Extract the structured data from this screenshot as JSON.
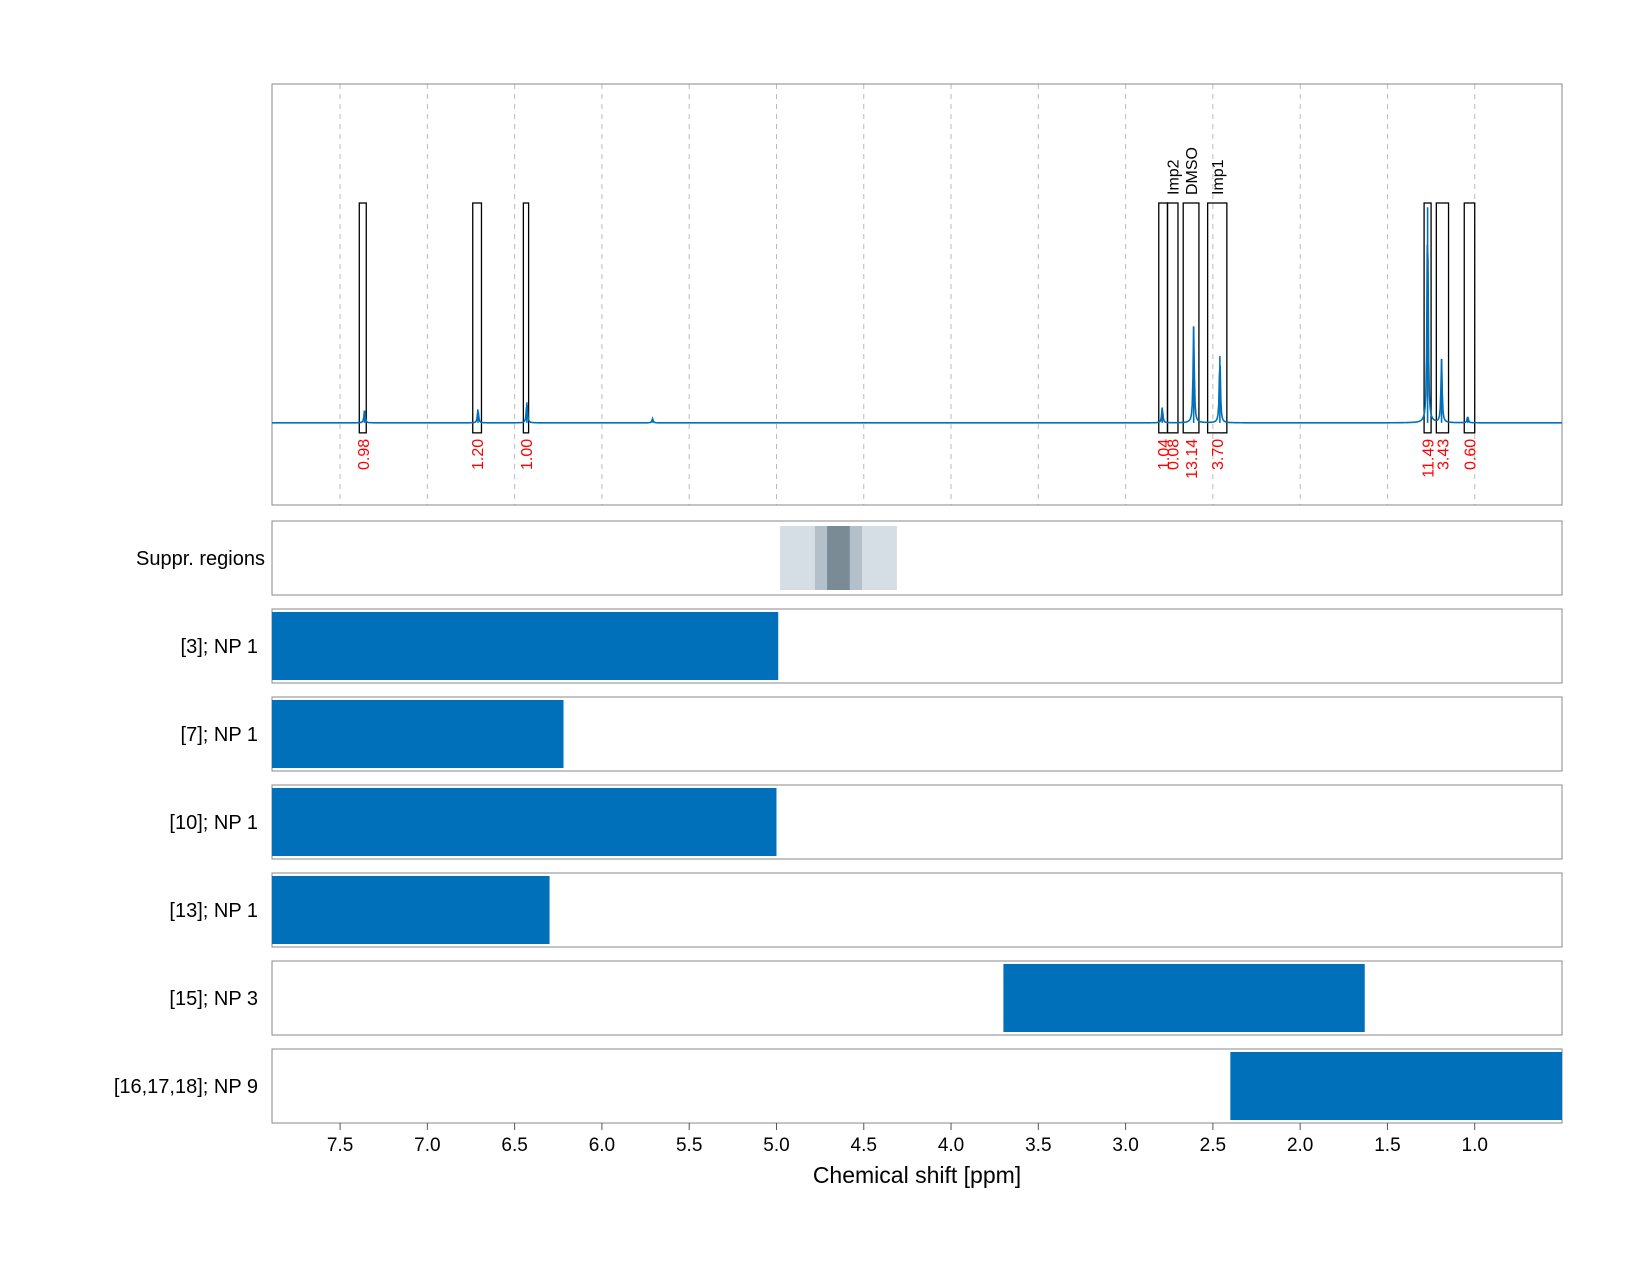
{
  "chart_data": {
    "type": "line",
    "xlabel": "Chemical shift [ppm]",
    "xlim": [
      7.89,
      0.5
    ],
    "x_ticks": [
      "7.5",
      "7.0",
      "6.5",
      "6.0",
      "5.5",
      "5.0",
      "4.5",
      "4.0",
      "3.5",
      "3.0",
      "2.5",
      "2.0",
      "1.5",
      "1.0"
    ],
    "grid": "vertical dashed",
    "colors": {
      "spectrum": "#0070bb",
      "integral_label": "#ff0000",
      "region_box": "#000000",
      "suppression_light": "#d6dee5",
      "suppression_mid": "#b3c0ca",
      "suppression_dark": "#7a8b96",
      "grid": "#bbbbbb",
      "bar": "#0070bb"
    },
    "spectrum": {
      "baseline": 0,
      "ylim": [
        -0.08,
        0.33
      ],
      "peaks": [
        {
          "ppm": 7.36,
          "height": 0.012
        },
        {
          "ppm": 6.71,
          "height": 0.013
        },
        {
          "ppm": 6.43,
          "height": 0.02
        },
        {
          "ppm": 5.71,
          "height": 0.004
        },
        {
          "ppm": 2.79,
          "height": 0.015
        },
        {
          "ppm": 2.61,
          "height": 0.094
        },
        {
          "ppm": 2.46,
          "height": 0.065
        },
        {
          "ppm": 1.27,
          "height": 0.21
        },
        {
          "ppm": 1.19,
          "height": 0.062
        },
        {
          "ppm": 1.04,
          "height": 0.006
        }
      ]
    },
    "integration_regions": [
      {
        "from": 7.39,
        "to": 7.35,
        "integral": "0.98",
        "label": ""
      },
      {
        "from": 6.74,
        "to": 6.69,
        "integral": "1.20",
        "label": ""
      },
      {
        "from": 6.45,
        "to": 6.42,
        "integral": "1.00",
        "label": ""
      },
      {
        "from": 2.81,
        "to": 2.76,
        "integral": "1.04",
        "label": ""
      },
      {
        "from": 2.76,
        "to": 2.7,
        "integral": "0.08",
        "label": "Imp2"
      },
      {
        "from": 2.67,
        "to": 2.58,
        "integral": "13.14",
        "label": "DMSO"
      },
      {
        "from": 2.53,
        "to": 2.42,
        "integral": "3.70",
        "label": "Imp1"
      },
      {
        "from": 1.29,
        "to": 1.25,
        "integral": "11.49",
        "label": ""
      },
      {
        "from": 1.22,
        "to": 1.15,
        "integral": "3.43",
        "label": ""
      },
      {
        "from": 1.06,
        "to": 1.0,
        "integral": "0.60",
        "label": ""
      }
    ],
    "suppression": {
      "label": "Suppr. regions",
      "bands": [
        {
          "from": 4.98,
          "to": 4.31,
          "level": "light"
        },
        {
          "from": 4.78,
          "to": 4.51,
          "level": "mid"
        },
        {
          "from": 4.71,
          "to": 4.58,
          "level": "dark"
        }
      ]
    },
    "rows": [
      {
        "label": "[3]; NP 1",
        "from": 7.89,
        "to": 4.99
      },
      {
        "label": "[7]; NP 1",
        "from": 7.89,
        "to": 6.22
      },
      {
        "label": "[10]; NP 1",
        "from": 7.89,
        "to": 5.0
      },
      {
        "label": "[13]; NP 1",
        "from": 7.89,
        "to": 6.3
      },
      {
        "label": "[15]; NP 3",
        "from": 3.7,
        "to": 1.63
      },
      {
        "label": "[16,17,18]; NP 9",
        "from": 2.4,
        "to": 0.5
      }
    ]
  }
}
